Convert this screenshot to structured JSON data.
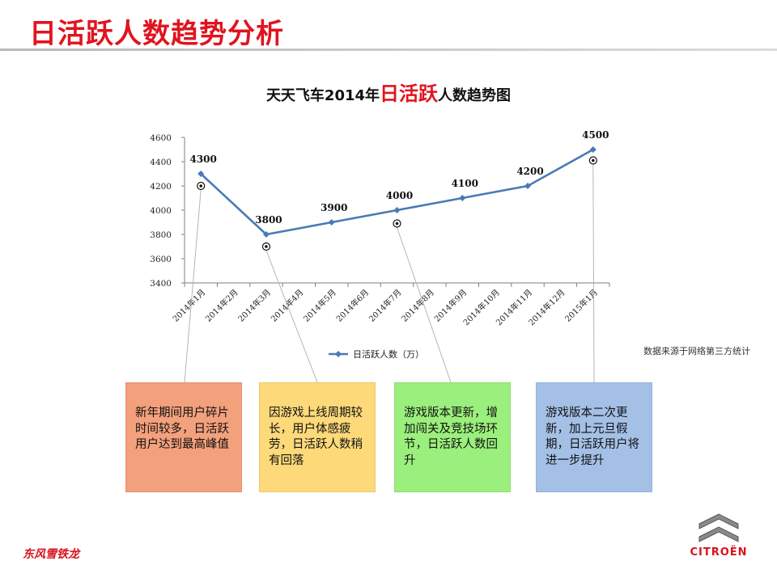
{
  "page": {
    "title": "日活跃人数趋势分析",
    "source_note": "数据来源于网络第三方统计"
  },
  "chart_data": {
    "type": "line",
    "title_prefix": "天天飞车2014年",
    "title_highlight": "日活跃",
    "title_suffix": "人数趋势图",
    "categories": [
      "2014年1月",
      "2014年2月",
      "2014年3月",
      "2014年4月",
      "2014年5月",
      "2014年6月",
      "2014年7月",
      "2014年8月",
      "2014年9月",
      "2014年10月",
      "2014年11月",
      "2014年12月",
      "2015年1月"
    ],
    "series": [
      {
        "name": "日活跃人数（万）",
        "x": [
          "2014年1月",
          "2014年3月",
          "2014年5月",
          "2014年7月",
          "2014年9月",
          "2014年11月",
          "2015年1月"
        ],
        "values": [
          4300,
          3800,
          3900,
          4000,
          4100,
          4200,
          4500
        ],
        "data_labels": [
          "4300",
          "3800",
          "3900",
          "4000",
          "4100",
          "4200",
          "4500"
        ]
      }
    ],
    "ylim": [
      3400,
      4600
    ],
    "yticks": [
      "3400",
      "3600",
      "3800",
      "4000",
      "4200",
      "4400",
      "4600"
    ],
    "legend_position": "bottom",
    "grid": false,
    "line_color": "#4a7ab6"
  },
  "annotations": [
    {
      "text": "新年期间用户碎片时间较多，日活跃用户达到最高峰值",
      "color": "#f3a07c",
      "anchor": "2014年1月",
      "anchor_value": 4200
    },
    {
      "text": "因游戏上线周期较长，用户体感疲劳，日活跃人数稍有回落",
      "color": "#fdd97a",
      "anchor": "2014年3月",
      "anchor_value": 3700
    },
    {
      "text": "游戏版本更新，增加闯关及竞技场环节，日活跃人数回升",
      "color": "#9bef7c",
      "anchor": "2014年7月",
      "anchor_value": 3890
    },
    {
      "text": "游戏版本二次更新，加上元旦假期，日活跃用户将进一步提升",
      "color": "#a4c0e6",
      "anchor": "2015年1月",
      "anchor_value": 4410
    }
  ],
  "brands": {
    "left": "东风雪铁龙",
    "right": "CITROËN"
  }
}
